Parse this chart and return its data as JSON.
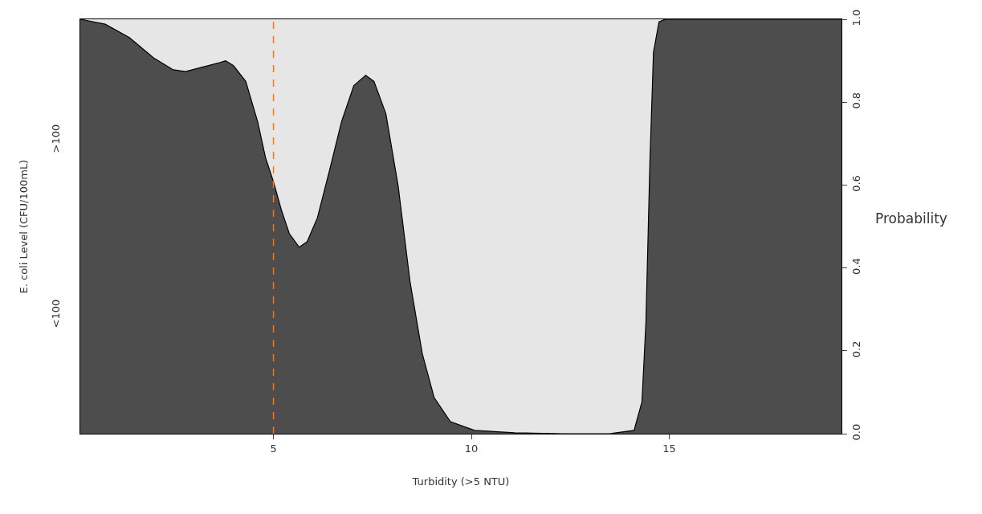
{
  "chart_data": {
    "type": "area",
    "xlabel": "Turbidity (>5 NTU)",
    "ylabel": "E. coli Level (CFU/100mL)",
    "y2label": "Probability",
    "annotations": [
      "<100",
      ">100"
    ],
    "x": [
      0.12,
      0.75,
      1.36,
      1.97,
      2.47,
      2.78,
      3.18,
      3.59,
      3.79,
      3.99,
      4.3,
      4.6,
      4.8,
      5.0,
      5.2,
      5.4,
      5.65,
      5.85,
      6.11,
      6.42,
      6.72,
      7.03,
      7.33,
      7.54,
      7.84,
      8.15,
      8.45,
      8.76,
      9.06,
      9.47,
      10.08,
      11.09,
      12.3,
      13.5,
      14.11,
      14.31,
      14.41,
      14.51,
      14.6,
      14.74,
      14.9,
      19.35
    ],
    "series": [
      {
        "color": "#4d4d4d",
        "axis": "y2",
        "values": [
          1.0,
          0.988,
          0.956,
          0.907,
          0.878,
          0.874,
          0.884,
          0.894,
          0.9,
          0.888,
          0.85,
          0.753,
          0.666,
          0.608,
          0.54,
          0.483,
          0.45,
          0.463,
          0.521,
          0.637,
          0.753,
          0.84,
          0.865,
          0.85,
          0.772,
          0.598,
          0.367,
          0.193,
          0.087,
          0.029,
          0.008,
          0.002,
          0.0,
          0.0,
          0.008,
          0.077,
          0.27,
          0.656,
          0.92,
          0.994,
          1.0,
          1.0
        ]
      }
    ],
    "xlim": [
      0.12,
      19.35
    ],
    "xticks": [
      5,
      10,
      15
    ],
    "y2lim": [
      0,
      1
    ],
    "y2ticks": [
      {
        "value": 0,
        "label": "0.0"
      },
      {
        "value": 0.2,
        "label": "0.2"
      },
      {
        "value": 0.4,
        "label": "0.4"
      },
      {
        "value": 0.6,
        "label": "0.6"
      },
      {
        "value": 0.8,
        "label": "0.8"
      },
      {
        "value": 1,
        "label": "1.0"
      }
    ],
    "ref_lines": [
      {
        "axis": "x",
        "value": 5,
        "color": "#f07820",
        "line_style": "dashed"
      }
    ],
    "grid": false
  }
}
